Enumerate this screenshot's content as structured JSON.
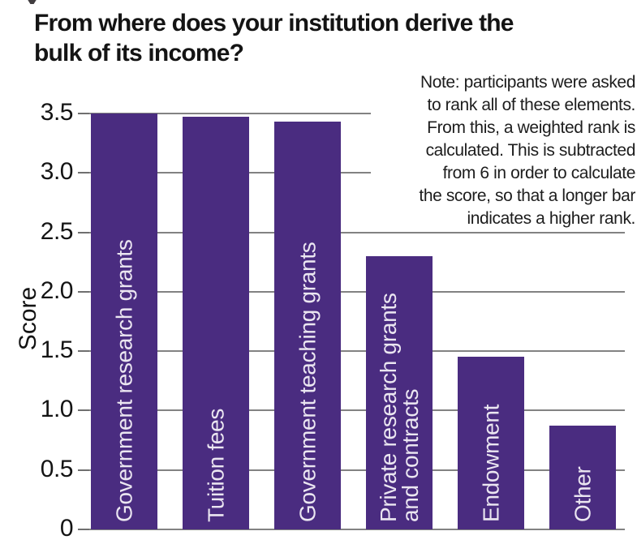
{
  "title": {
    "line1": "From where does your institution derive the",
    "line2": "bulk of its income?"
  },
  "note": {
    "lines": [
      "Note: participants were asked",
      "to rank all of these elements.",
      "From this, a weighted rank is",
      "calculated. This is subtracted",
      "from 6 in order to calculate",
      "the score, so that a longer bar",
      "indicates a higher rank."
    ]
  },
  "chart_data": {
    "type": "bar",
    "title": "From where does your institution derive the bulk of its income?",
    "categories": [
      "Government research grants",
      "Tuition fees",
      "Government teaching grants",
      "Private research grants\nand contracts",
      "Endowment",
      "Other"
    ],
    "values": [
      3.5,
      3.47,
      3.43,
      2.3,
      1.45,
      0.87
    ],
    "xlabel": "",
    "ylabel": "Score",
    "ylim": [
      0,
      3.5
    ],
    "yticks": [
      0,
      0.5,
      1.0,
      1.5,
      2.0,
      2.5,
      3.0,
      3.5
    ],
    "ytick_labels": [
      "0",
      "0.5",
      "1.0",
      "1.5",
      "2.0",
      "2.5",
      "3.0",
      "3.5"
    ],
    "grid": "horizontal",
    "legend": "none",
    "bar_color": "#4a2c80",
    "bar_label_color": "#ebe6f1",
    "gridline_color": "#828282",
    "text_color": "#141414"
  }
}
